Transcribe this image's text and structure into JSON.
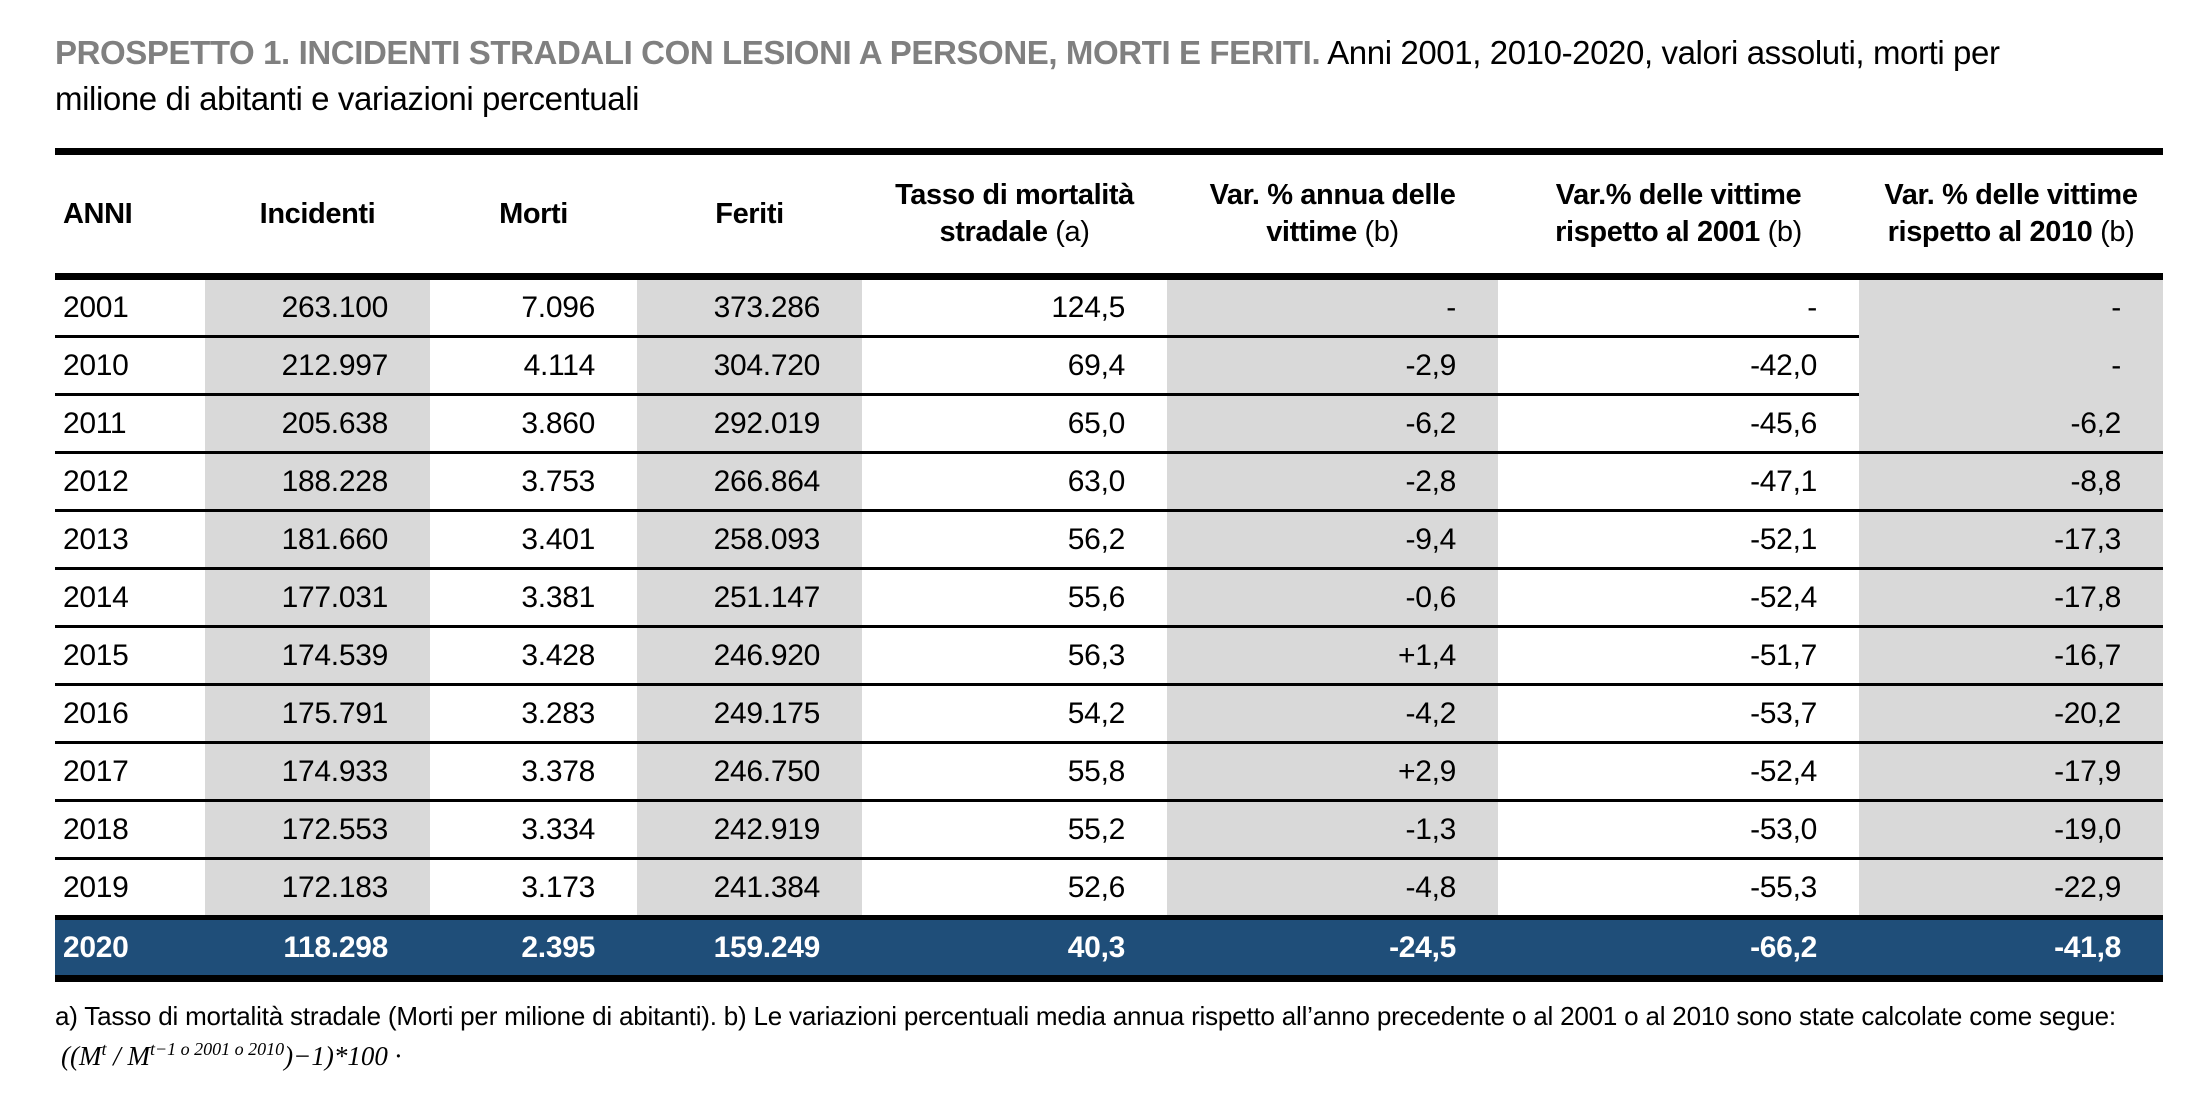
{
  "colors": {
    "highlight_blue": "#1F4E79",
    "column_shade_gray": "#D9D9D9",
    "title_gray": "#808080"
  },
  "title": {
    "bold": "PROSPETTO 1. INCIDENTI STRADALI CON LESIONI A PERSONE, MORTI E FERITI.",
    "normal": "Anni 2001, 2010-2020, valori assoluti, morti per milione di abitanti e variazioni percentuali"
  },
  "table": {
    "columns": [
      {
        "id": "anni",
        "lines": [
          "ANNI"
        ],
        "suffix": ""
      },
      {
        "id": "incidenti",
        "lines": [
          "Incidenti"
        ],
        "suffix": ""
      },
      {
        "id": "morti",
        "lines": [
          "Morti"
        ],
        "suffix": ""
      },
      {
        "id": "feriti",
        "lines": [
          "Feriti"
        ],
        "suffix": ""
      },
      {
        "id": "tasso",
        "lines": [
          "Tasso di mortalità",
          "stradale"
        ],
        "suffix": "(a)"
      },
      {
        "id": "var_annua",
        "lines": [
          "Var. % annua delle",
          "vittime"
        ],
        "suffix": "(b)"
      },
      {
        "id": "var2001",
        "lines": [
          "Var.% delle vittime",
          "rispetto al 2001"
        ],
        "suffix": "(b)"
      },
      {
        "id": "var2010",
        "lines": [
          "Var. % delle vittime",
          "rispetto al 2010"
        ],
        "suffix": "(b)"
      }
    ],
    "shaded_columns": [
      "incidenti",
      "feriti",
      "var_annua",
      "var2010"
    ],
    "rows": [
      {
        "anni": "2001",
        "incidenti": "263.100",
        "morti": "7.096",
        "feriti": "373.286",
        "tasso": "124,5",
        "var_annua": "-",
        "var2001": "-",
        "var2010": "-"
      },
      {
        "anni": "2010",
        "incidenti": "212.997",
        "morti": "4.114",
        "feriti": "304.720",
        "tasso": "69,4",
        "var_annua": "-2,9",
        "var2001": "-42,0",
        "var2010": "-"
      },
      {
        "anni": "2011",
        "incidenti": "205.638",
        "morti": "3.860",
        "feriti": "292.019",
        "tasso": "65,0",
        "var_annua": "-6,2",
        "var2001": "-45,6",
        "var2010": "-6,2"
      },
      {
        "anni": "2012",
        "incidenti": "188.228",
        "morti": "3.753",
        "feriti": "266.864",
        "tasso": "63,0",
        "var_annua": "-2,8",
        "var2001": "-47,1",
        "var2010": "-8,8"
      },
      {
        "anni": "2013",
        "incidenti": "181.660",
        "morti": "3.401",
        "feriti": "258.093",
        "tasso": "56,2",
        "var_annua": "-9,4",
        "var2001": "-52,1",
        "var2010": "-17,3"
      },
      {
        "anni": "2014",
        "incidenti": "177.031",
        "morti": "3.381",
        "feriti": "251.147",
        "tasso": "55,6",
        "var_annua": "-0,6",
        "var2001": "-52,4",
        "var2010": "-17,8"
      },
      {
        "anni": "2015",
        "incidenti": "174.539",
        "morti": "3.428",
        "feriti": "246.920",
        "tasso": "56,3",
        "var_annua": "+1,4",
        "var2001": "-51,7",
        "var2010": "-16,7"
      },
      {
        "anni": "2016",
        "incidenti": "175.791",
        "morti": "3.283",
        "feriti": "249.175",
        "tasso": "54,2",
        "var_annua": "-4,2",
        "var2001": "-53,7",
        "var2010": "-20,2"
      },
      {
        "anni": "2017",
        "incidenti": "174.933",
        "morti": "3.378",
        "feriti": "246.750",
        "tasso": "55,8",
        "var_annua": "+2,9",
        "var2001": "-52,4",
        "var2010": "-17,9"
      },
      {
        "anni": "2018",
        "incidenti": "172.553",
        "morti": "3.334",
        "feriti": "242.919",
        "tasso": "55,2",
        "var_annua": "-1,3",
        "var2001": "-53,0",
        "var2010": "-19,0"
      },
      {
        "anni": "2019",
        "incidenti": "172.183",
        "morti": "3.173",
        "feriti": "241.384",
        "tasso": "52,6",
        "var_annua": "-4,8",
        "var2001": "-55,3",
        "var2010": "-22,9"
      }
    ],
    "highlight_row": {
      "anni": "2020",
      "incidenti": "118.298",
      "morti": "2.395",
      "feriti": "159.249",
      "tasso": "40,3",
      "var_annua": "-24,5",
      "var2001": "-66,2",
      "var2010": "-41,8"
    }
  },
  "footnote": {
    "text": "a) Tasso di mortalità stradale (Morti per milione di abitanti). b) Le variazioni percentuali media annua rispetto all’anno precedente o al 2001 o al 2010 sono state calcolate come segue:",
    "formula": {
      "p1": "((M",
      "sup1": "t",
      "p2": " / M",
      "sup2": "t−1 o 2001 o 2010",
      "p3": ")−1)*100 ",
      "dot": "·"
    }
  }
}
